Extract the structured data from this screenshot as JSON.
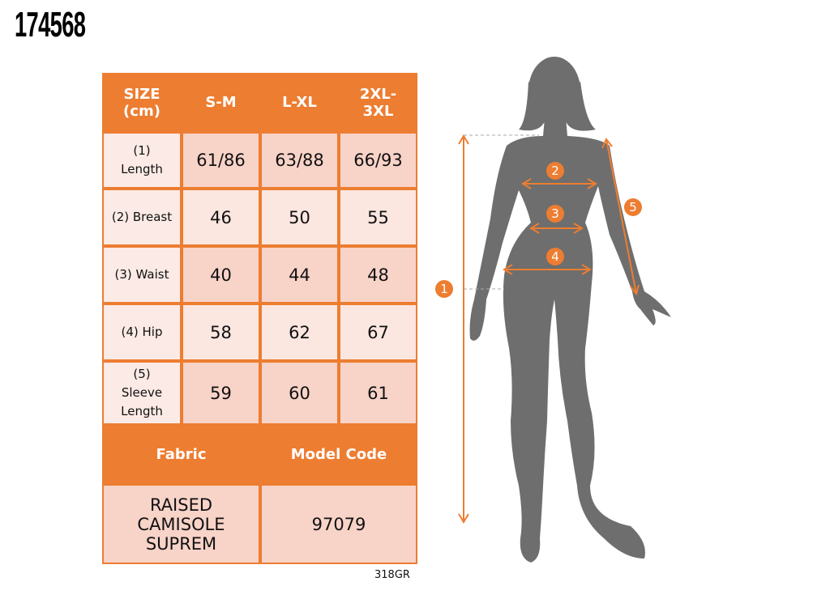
{
  "title": "174568",
  "table": {
    "header": [
      "SIZE (cm)",
      "S-M",
      "L-XL",
      "2XL-3XL"
    ],
    "rows": [
      [
        "(1) Length",
        "61/86",
        "63/88",
        "66/93"
      ],
      [
        "(2) Breast",
        "46",
        "50",
        "55"
      ],
      [
        "(3) Waist",
        "40",
        "44",
        "48"
      ],
      [
        "(4) Hip",
        "58",
        "62",
        "67"
      ],
      [
        "(5) Sleeve Length",
        "59",
        "60",
        "61"
      ]
    ],
    "footer_header": [
      "Fabric",
      "Model Code"
    ],
    "footer_row": [
      "RAISED CAMISOLE SUPREM",
      "97079"
    ]
  },
  "code": "318GR",
  "figure": {
    "markers": [
      "1",
      "2",
      "3",
      "4",
      "5"
    ]
  }
}
